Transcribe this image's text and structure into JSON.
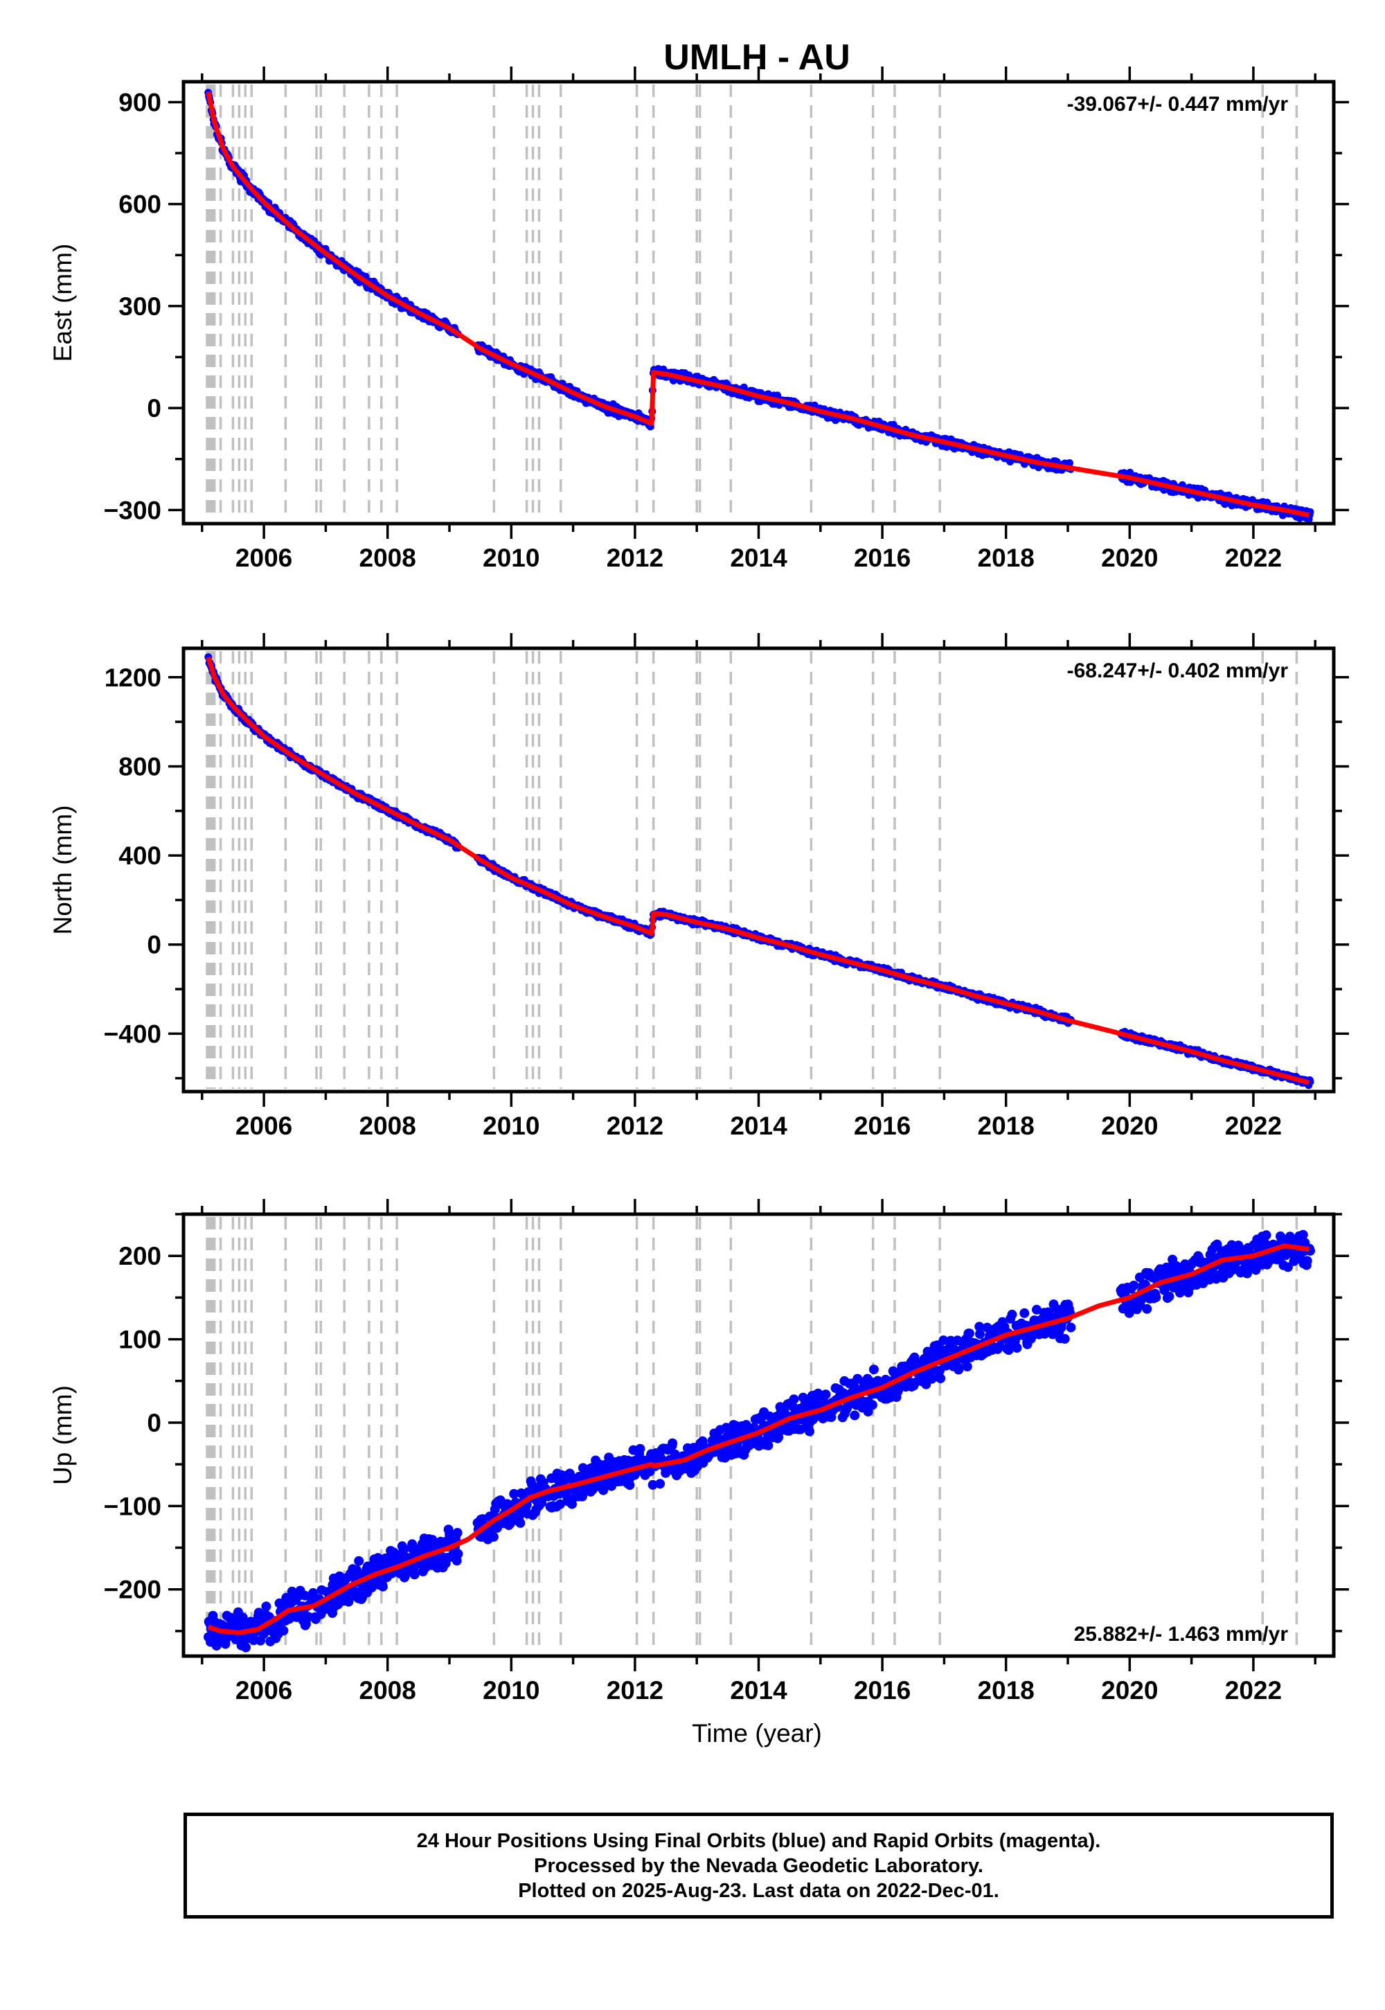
{
  "title": "UMLH - AU",
  "xlabel": "Time (year)",
  "footer": {
    "line1": "24 Hour Positions Using Final Orbits (blue) and Rapid Orbits (magenta).",
    "line2": "Processed by the Nevada Geodetic Laboratory.",
    "line3": "Plotted on 2025-Aug-23. Last data on 2022-Dec-01."
  },
  "colors": {
    "observations": "#0000ff",
    "model": "#ff0000",
    "event_lines": "#c0c0c0",
    "frame": "#000000"
  },
  "chart_data": [
    {
      "type": "scatter",
      "panel": "top",
      "ylabel": "East (mm)",
      "rate_label": "-39.067+/- 0.447 mm/yr",
      "rate_position": "top-right",
      "xlim": [
        2004.7,
        2023.3
      ],
      "ylim": [
        -340,
        960
      ],
      "x_ticks": [
        2006,
        2008,
        2010,
        2012,
        2014,
        2016,
        2018,
        2020,
        2022
      ],
      "y_ticks": [
        -300,
        0,
        300,
        600,
        900
      ],
      "y_tick_labels": [
        "−300",
        "0",
        "300",
        "600",
        "900"
      ],
      "grid": false,
      "series": [
        {
          "points": [
            [
              2005.1,
              930
            ],
            [
              2005.2,
              840
            ],
            [
              2005.35,
              760
            ],
            [
              2005.5,
              710
            ],
            [
              2005.75,
              655
            ],
            [
              2006.0,
              605
            ],
            [
              2006.5,
              525
            ],
            [
              2007.0,
              455
            ],
            [
              2007.5,
              390
            ],
            [
              2008.0,
              330
            ],
            [
              2008.5,
              280
            ],
            [
              2009.0,
              235
            ],
            [
              2009.5,
              175
            ],
            [
              2010.0,
              130
            ],
            [
              2010.5,
              90
            ],
            [
              2011.0,
              45
            ],
            [
              2011.5,
              5
            ],
            [
              2012.0,
              -25
            ],
            [
              2012.27,
              -45
            ],
            [
              2012.3,
              105
            ],
            [
              2012.5,
              100
            ],
            [
              2013.0,
              80
            ],
            [
              2013.5,
              60
            ],
            [
              2014.0,
              35
            ],
            [
              2014.5,
              15
            ],
            [
              2015.0,
              -10
            ],
            [
              2015.5,
              -30
            ],
            [
              2016.0,
              -55
            ],
            [
              2016.5,
              -80
            ],
            [
              2017.0,
              -100
            ],
            [
              2017.5,
              -120
            ],
            [
              2018.0,
              -140
            ],
            [
              2018.5,
              -160
            ],
            [
              2019.0,
              -175
            ],
            [
              2019.5,
              -190
            ],
            [
              2020.0,
              -205
            ],
            [
              2020.5,
              -225
            ],
            [
              2021.0,
              -245
            ],
            [
              2021.5,
              -265
            ],
            [
              2022.0,
              -285
            ],
            [
              2022.5,
              -300
            ],
            [
              2022.9,
              -315
            ]
          ]
        }
      ]
    },
    {
      "type": "scatter",
      "panel": "middle",
      "ylabel": "North (mm)",
      "rate_label": "-68.247+/- 0.402 mm/yr",
      "rate_position": "top-right",
      "xlim": [
        2004.7,
        2023.3
      ],
      "ylim": [
        -660,
        1330
      ],
      "x_ticks": [
        2006,
        2008,
        2010,
        2012,
        2014,
        2016,
        2018,
        2020,
        2022
      ],
      "y_ticks": [
        -400,
        0,
        400,
        800,
        1200
      ],
      "y_tick_labels": [
        "−400",
        "0",
        "400",
        "800",
        "1200"
      ],
      "grid": false,
      "series": [
        {
          "points": [
            [
              2005.1,
              1290
            ],
            [
              2005.2,
              1200
            ],
            [
              2005.35,
              1120
            ],
            [
              2005.5,
              1070
            ],
            [
              2005.75,
              1000
            ],
            [
              2006.0,
              935
            ],
            [
              2006.5,
              840
            ],
            [
              2007.0,
              755
            ],
            [
              2007.5,
              675
            ],
            [
              2008.0,
              605
            ],
            [
              2008.5,
              535
            ],
            [
              2009.0,
              470
            ],
            [
              2009.5,
              380
            ],
            [
              2010.0,
              300
            ],
            [
              2010.5,
              240
            ],
            [
              2011.0,
              175
            ],
            [
              2011.5,
              125
            ],
            [
              2012.0,
              80
            ],
            [
              2012.27,
              50
            ],
            [
              2012.3,
              140
            ],
            [
              2012.5,
              135
            ],
            [
              2013.0,
              100
            ],
            [
              2013.5,
              70
            ],
            [
              2014.0,
              30
            ],
            [
              2014.5,
              -5
            ],
            [
              2015.0,
              -45
            ],
            [
              2015.5,
              -80
            ],
            [
              2016.0,
              -115
            ],
            [
              2016.5,
              -155
            ],
            [
              2017.0,
              -190
            ],
            [
              2017.5,
              -230
            ],
            [
              2018.0,
              -265
            ],
            [
              2018.5,
              -300
            ],
            [
              2019.0,
              -340
            ],
            [
              2019.5,
              -375
            ],
            [
              2020.0,
              -410
            ],
            [
              2020.5,
              -445
            ],
            [
              2021.0,
              -480
            ],
            [
              2021.5,
              -520
            ],
            [
              2022.0,
              -555
            ],
            [
              2022.5,
              -590
            ],
            [
              2022.9,
              -620
            ]
          ]
        }
      ]
    },
    {
      "type": "scatter",
      "panel": "bottom",
      "ylabel": "Up (mm)",
      "rate_label": "25.882+/- 1.463 mm/yr",
      "rate_position": "bottom-right",
      "xlim": [
        2004.7,
        2023.3
      ],
      "ylim": [
        -280,
        250
      ],
      "x_ticks": [
        2006,
        2008,
        2010,
        2012,
        2014,
        2016,
        2018,
        2020,
        2022
      ],
      "y_ticks": [
        -200,
        -100,
        0,
        100,
        200
      ],
      "y_tick_labels": [
        "−200",
        "−100",
        "0",
        "100",
        "200"
      ],
      "grid": false,
      "series": [
        {
          "points": [
            [
              2005.1,
              -245
            ],
            [
              2005.3,
              -250
            ],
            [
              2005.6,
              -252
            ],
            [
              2005.9,
              -248
            ],
            [
              2006.2,
              -235
            ],
            [
              2006.4,
              -225
            ],
            [
              2006.8,
              -220
            ],
            [
              2007.0,
              -212
            ],
            [
              2007.4,
              -195
            ],
            [
              2007.8,
              -182
            ],
            [
              2008.2,
              -172
            ],
            [
              2008.6,
              -160
            ],
            [
              2009.0,
              -150
            ],
            [
              2009.3,
              -140
            ],
            [
              2009.7,
              -118
            ],
            [
              2010.0,
              -105
            ],
            [
              2010.3,
              -90
            ],
            [
              2010.6,
              -82
            ],
            [
              2011.0,
              -75
            ],
            [
              2011.5,
              -65
            ],
            [
              2012.0,
              -55
            ],
            [
              2012.27,
              -50
            ],
            [
              2012.3,
              -52
            ],
            [
              2012.8,
              -45
            ],
            [
              2013.2,
              -32
            ],
            [
              2013.6,
              -22
            ],
            [
              2014.0,
              -12
            ],
            [
              2014.5,
              5
            ],
            [
              2015.0,
              15
            ],
            [
              2015.5,
              30
            ],
            [
              2016.0,
              42
            ],
            [
              2016.5,
              60
            ],
            [
              2017.0,
              75
            ],
            [
              2017.5,
              90
            ],
            [
              2018.0,
              105
            ],
            [
              2018.5,
              115
            ],
            [
              2019.0,
              125
            ],
            [
              2019.5,
              140
            ],
            [
              2020.0,
              150
            ],
            [
              2020.5,
              168
            ],
            [
              2021.0,
              178
            ],
            [
              2021.5,
              195
            ],
            [
              2022.0,
              200
            ],
            [
              2022.5,
              212
            ],
            [
              2022.9,
              208
            ]
          ]
        }
      ]
    }
  ],
  "event_lines": [
    2005.08,
    2005.1,
    2005.12,
    2005.15,
    2005.17,
    2005.2,
    2005.3,
    2005.5,
    2005.6,
    2005.7,
    2005.8,
    2006.35,
    2006.85,
    2006.92,
    2007.3,
    2007.7,
    2007.9,
    2008.15,
    2009.72,
    2010.25,
    2010.35,
    2010.45,
    2010.8,
    2012.03,
    2012.3,
    2013.0,
    2013.05,
    2013.55,
    2014.85,
    2015.85,
    2016.2,
    2016.93,
    2022.15,
    2022.7
  ]
}
